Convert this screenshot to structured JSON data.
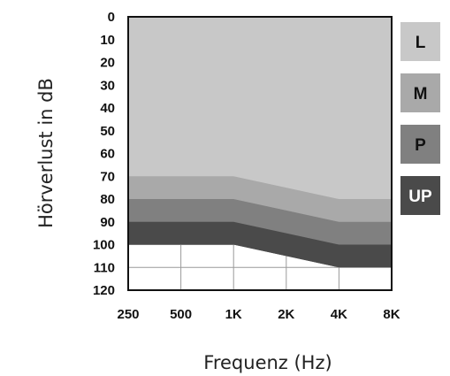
{
  "chart_data": {
    "type": "area",
    "title": "",
    "xlabel": "Frequenz (Hz)",
    "ylabel": "Hörverlust in dB",
    "x": [
      250,
      500,
      1000,
      2000,
      4000,
      8000
    ],
    "x_tick_labels": [
      "250",
      "500",
      "1K",
      "2K",
      "4K",
      "8K"
    ],
    "y_ticks": [
      0,
      10,
      20,
      30,
      40,
      50,
      60,
      70,
      80,
      90,
      100,
      110,
      120
    ],
    "y_tick_labels": [
      "0",
      "10",
      "20",
      "30",
      "40",
      "50",
      "60",
      "70",
      "80",
      "90",
      "100",
      "110",
      "120"
    ],
    "ylim": [
      0,
      120
    ],
    "y_inverted": true,
    "grid": true,
    "legend_position": "right",
    "bands": [
      {
        "name": "L",
        "color": "#c8c8c8",
        "lower_db": [
          70,
          70,
          70,
          75,
          80,
          80
        ]
      },
      {
        "name": "M",
        "color": "#a9a9a9",
        "lower_db": [
          80,
          80,
          80,
          85,
          90,
          90
        ]
      },
      {
        "name": "P",
        "color": "#808080",
        "lower_db": [
          90,
          90,
          90,
          95,
          100,
          100
        ]
      },
      {
        "name": "UP",
        "color": "#4a4a4a",
        "lower_db": [
          100,
          100,
          100,
          105,
          110,
          110
        ]
      }
    ],
    "legend": [
      {
        "label": "L",
        "color": "#c8c8c8",
        "text_color": "#111111"
      },
      {
        "label": "M",
        "color": "#a9a9a9",
        "text_color": "#111111"
      },
      {
        "label": "P",
        "color": "#808080",
        "text_color": "#111111"
      },
      {
        "label": "UP",
        "color": "#4a4a4a",
        "text_color": "#ffffff"
      }
    ]
  }
}
